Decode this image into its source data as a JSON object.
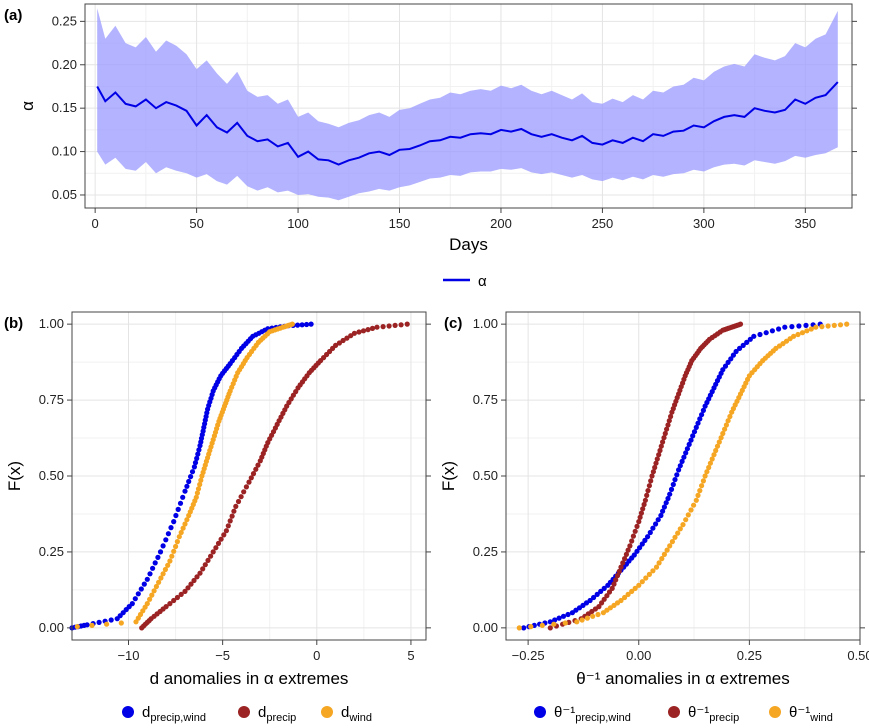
{
  "chart_data": [
    {
      "panel": "(a)",
      "type": "line",
      "xlabel": "Days",
      "ylabel": "α",
      "xlim": [
        -5,
        373
      ],
      "ylim": [
        0.035,
        0.27
      ],
      "xticks": [
        0,
        50,
        100,
        150,
        200,
        250,
        300,
        350
      ],
      "yticks": [
        0.05,
        0.1,
        0.15,
        0.2,
        0.25
      ],
      "ytick_labels": [
        "0.05",
        "0.10",
        "0.15",
        "0.20",
        "0.25"
      ],
      "grid": true,
      "legend_position": "bottom",
      "series": [
        {
          "name": "α",
          "color": "#0000e6",
          "band_color": "#9999ff",
          "x": [
            1,
            5,
            10,
            15,
            20,
            25,
            30,
            35,
            40,
            45,
            50,
            55,
            60,
            65,
            70,
            75,
            80,
            85,
            90,
            95,
            100,
            105,
            110,
            115,
            120,
            125,
            130,
            135,
            140,
            145,
            150,
            155,
            160,
            165,
            170,
            175,
            180,
            185,
            190,
            195,
            200,
            205,
            210,
            215,
            220,
            225,
            230,
            235,
            240,
            245,
            250,
            255,
            260,
            265,
            270,
            275,
            280,
            285,
            290,
            295,
            300,
            305,
            310,
            315,
            320,
            325,
            330,
            335,
            340,
            345,
            350,
            355,
            360,
            366
          ],
          "values": [
            0.175,
            0.158,
            0.168,
            0.155,
            0.152,
            0.16,
            0.15,
            0.157,
            0.153,
            0.147,
            0.13,
            0.142,
            0.128,
            0.122,
            0.133,
            0.118,
            0.112,
            0.114,
            0.106,
            0.11,
            0.094,
            0.1,
            0.091,
            0.09,
            0.085,
            0.09,
            0.093,
            0.098,
            0.1,
            0.096,
            0.102,
            0.103,
            0.107,
            0.112,
            0.113,
            0.117,
            0.116,
            0.12,
            0.121,
            0.12,
            0.125,
            0.123,
            0.126,
            0.12,
            0.117,
            0.12,
            0.116,
            0.113,
            0.118,
            0.11,
            0.108,
            0.113,
            0.11,
            0.116,
            0.112,
            0.12,
            0.118,
            0.123,
            0.124,
            0.13,
            0.128,
            0.135,
            0.14,
            0.142,
            0.14,
            0.15,
            0.147,
            0.145,
            0.148,
            0.16,
            0.155,
            0.162,
            0.165,
            0.18
          ],
          "lower": [
            0.1,
            0.085,
            0.093,
            0.08,
            0.078,
            0.088,
            0.075,
            0.082,
            0.078,
            0.075,
            0.07,
            0.074,
            0.066,
            0.062,
            0.072,
            0.06,
            0.055,
            0.059,
            0.053,
            0.055,
            0.05,
            0.051,
            0.048,
            0.047,
            0.044,
            0.048,
            0.052,
            0.054,
            0.057,
            0.055,
            0.059,
            0.061,
            0.065,
            0.069,
            0.07,
            0.073,
            0.072,
            0.076,
            0.077,
            0.077,
            0.08,
            0.079,
            0.081,
            0.076,
            0.074,
            0.076,
            0.073,
            0.07,
            0.073,
            0.068,
            0.066,
            0.07,
            0.067,
            0.071,
            0.068,
            0.073,
            0.071,
            0.074,
            0.075,
            0.079,
            0.077,
            0.082,
            0.085,
            0.086,
            0.084,
            0.09,
            0.088,
            0.086,
            0.089,
            0.095,
            0.093,
            0.096,
            0.098,
            0.105
          ],
          "upper": [
            0.265,
            0.23,
            0.245,
            0.225,
            0.22,
            0.232,
            0.215,
            0.228,
            0.222,
            0.212,
            0.195,
            0.205,
            0.19,
            0.178,
            0.192,
            0.17,
            0.163,
            0.165,
            0.155,
            0.16,
            0.14,
            0.145,
            0.135,
            0.132,
            0.128,
            0.133,
            0.136,
            0.142,
            0.145,
            0.14,
            0.148,
            0.15,
            0.155,
            0.16,
            0.162,
            0.168,
            0.166,
            0.17,
            0.172,
            0.17,
            0.176,
            0.173,
            0.177,
            0.17,
            0.166,
            0.17,
            0.165,
            0.16,
            0.167,
            0.157,
            0.155,
            0.161,
            0.157,
            0.165,
            0.16,
            0.17,
            0.168,
            0.175,
            0.177,
            0.185,
            0.182,
            0.192,
            0.198,
            0.201,
            0.198,
            0.212,
            0.208,
            0.205,
            0.21,
            0.225,
            0.22,
            0.23,
            0.235,
            0.262
          ]
        }
      ]
    },
    {
      "panel": "(b)",
      "type": "scatter",
      "kind": "ecdf",
      "xlabel": "d anomalies in α extremes",
      "ylabel": "F(x)",
      "xlim": [
        -13,
        5.8
      ],
      "ylim": [
        -0.04,
        1.04
      ],
      "xticks": [
        -10,
        -5,
        0,
        5
      ],
      "xtick_labels": [
        "−10",
        "−5",
        "0",
        "5"
      ],
      "yticks": [
        0,
        0.25,
        0.5,
        0.75,
        1
      ],
      "ytick_labels": [
        "0.00",
        "0.25",
        "0.50",
        "0.75",
        "1.00"
      ],
      "grid": true,
      "legend_position": "bottom",
      "series": [
        {
          "name": "d",
          "subscript": "precip,wind",
          "color": "#0000e6",
          "x": [
            -13.0,
            -12.2,
            -10.6,
            -9.8,
            -9.0,
            -8.3,
            -7.6,
            -7.0,
            -6.5,
            -6.2,
            -6.0,
            -5.8,
            -5.5,
            -5.1,
            -4.6,
            -4.0,
            -3.4,
            -2.6,
            -1.5,
            -0.3
          ],
          "values": [
            0.0,
            0.01,
            0.03,
            0.08,
            0.16,
            0.25,
            0.35,
            0.45,
            0.53,
            0.6,
            0.66,
            0.72,
            0.78,
            0.83,
            0.87,
            0.92,
            0.96,
            0.985,
            0.995,
            1.0
          ]
        },
        {
          "name": "d",
          "subscript": "precip",
          "color": "#9b2323",
          "x": [
            -9.3,
            -8.8,
            -8.0,
            -7.0,
            -6.2,
            -5.5,
            -4.8,
            -4.3,
            -3.6,
            -3.0,
            -2.6,
            -2.1,
            -1.6,
            -1.0,
            -0.4,
            0.2,
            1.0,
            2.0,
            3.2,
            4.8
          ],
          "values": [
            0.0,
            0.03,
            0.07,
            0.12,
            0.18,
            0.25,
            0.32,
            0.4,
            0.48,
            0.55,
            0.61,
            0.67,
            0.73,
            0.79,
            0.84,
            0.88,
            0.93,
            0.97,
            0.99,
            1.0
          ]
        },
        {
          "name": "d",
          "subscript": "wind",
          "color": "#f5a623",
          "x": [
            -13.5,
            -9.6,
            -9.0,
            -8.4,
            -7.8,
            -7.3,
            -6.8,
            -6.4,
            -6.1,
            -5.8,
            -5.5,
            -5.2,
            -4.9,
            -4.6,
            -4.2,
            -3.7,
            -3.1,
            -2.5,
            -1.8,
            -1.3
          ],
          "values": [
            0.0,
            0.02,
            0.08,
            0.15,
            0.22,
            0.3,
            0.37,
            0.43,
            0.5,
            0.56,
            0.62,
            0.68,
            0.73,
            0.78,
            0.84,
            0.89,
            0.94,
            0.975,
            0.99,
            1.0
          ]
        }
      ]
    },
    {
      "panel": "(c)",
      "type": "scatter",
      "kind": "ecdf",
      "xlabel": "θ⁻¹ anomalies in α extremes",
      "ylabel": "F(x)",
      "xlim": [
        -0.3,
        0.5
      ],
      "ylim": [
        -0.04,
        1.04
      ],
      "xticks": [
        -0.25,
        0,
        0.25,
        0.5
      ],
      "xtick_labels": [
        "−0.25",
        "0.00",
        "0.25",
        "0.50"
      ],
      "yticks": [
        0,
        0.25,
        0.5,
        0.75,
        1
      ],
      "ytick_labels": [
        "0.00",
        "0.25",
        "0.50",
        "0.75",
        "1.00"
      ],
      "grid": true,
      "legend_position": "bottom",
      "series": [
        {
          "name": "θ⁻¹",
          "subscript": "precip,wind",
          "color": "#0000e6",
          "x": [
            -0.26,
            -0.2,
            -0.15,
            -0.11,
            -0.07,
            -0.04,
            -0.01,
            0.02,
            0.05,
            0.07,
            0.09,
            0.11,
            0.13,
            0.15,
            0.17,
            0.19,
            0.22,
            0.26,
            0.33,
            0.41
          ],
          "values": [
            0.0,
            0.02,
            0.05,
            0.09,
            0.14,
            0.19,
            0.24,
            0.3,
            0.37,
            0.44,
            0.52,
            0.59,
            0.66,
            0.73,
            0.79,
            0.85,
            0.91,
            0.96,
            0.99,
            1.0
          ]
        },
        {
          "name": "θ⁻¹",
          "subscript": "precip",
          "color": "#9b2323",
          "x": [
            -0.2,
            -0.13,
            -0.09,
            -0.06,
            -0.04,
            -0.02,
            0.0,
            0.015,
            0.03,
            0.045,
            0.06,
            0.075,
            0.09,
            0.105,
            0.12,
            0.14,
            0.16,
            0.19,
            0.21,
            0.23
          ],
          "values": [
            0.0,
            0.03,
            0.07,
            0.13,
            0.2,
            0.27,
            0.35,
            0.42,
            0.5,
            0.57,
            0.64,
            0.71,
            0.77,
            0.83,
            0.88,
            0.92,
            0.95,
            0.98,
            0.99,
            1.0
          ]
        },
        {
          "name": "θ⁻¹",
          "subscript": "wind",
          "color": "#f5a623",
          "x": [
            -0.27,
            -0.14,
            -0.08,
            -0.04,
            0.0,
            0.04,
            0.07,
            0.1,
            0.13,
            0.15,
            0.17,
            0.19,
            0.21,
            0.23,
            0.25,
            0.28,
            0.31,
            0.35,
            0.4,
            0.47
          ],
          "values": [
            0.0,
            0.02,
            0.05,
            0.09,
            0.14,
            0.2,
            0.27,
            0.34,
            0.42,
            0.5,
            0.57,
            0.64,
            0.71,
            0.77,
            0.83,
            0.88,
            0.92,
            0.96,
            0.99,
            1.0
          ]
        }
      ]
    }
  ]
}
